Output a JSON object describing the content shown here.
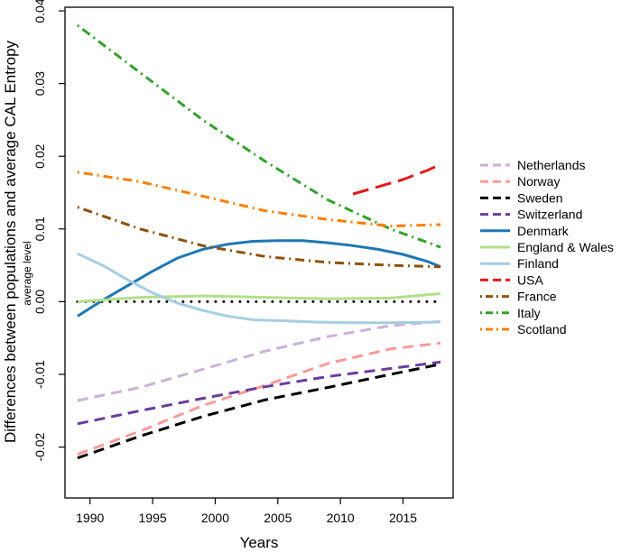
{
  "chart_data": {
    "type": "line",
    "xlabel": "Years",
    "ylabel": "Differences between populations and average CAL Entropy",
    "xlim": [
      1988,
      2019
    ],
    "ylim": [
      -0.027,
      0.0405
    ],
    "xticks": [
      1990,
      1995,
      2000,
      2005,
      2010,
      2015
    ],
    "yticks": [
      -0.02,
      -0.01,
      0.0,
      0.01,
      0.02,
      0.03,
      0.04
    ],
    "ytick_labels": [
      "-0.02",
      "-0.01",
      "0.00",
      "0.01",
      "0.02",
      "0.03",
      "0.04"
    ],
    "reference_line": {
      "y": 0,
      "label": "average level",
      "color": "#000000"
    },
    "series": [
      {
        "name": "Netherlands",
        "color": "#cab2d6",
        "dash": "dashed",
        "x": [
          1989,
          1994,
          1999,
          2004,
          2009,
          2014,
          2018
        ],
        "y": [
          -0.0136,
          -0.0118,
          -0.0093,
          -0.0068,
          -0.0048,
          -0.0033,
          -0.0027
        ]
      },
      {
        "name": "Norway",
        "color": "#fb9a99",
        "dash": "dashed",
        "x": [
          1989,
          1994,
          1999,
          2004,
          2009,
          2014,
          2018
        ],
        "y": [
          -0.021,
          -0.0178,
          -0.0143,
          -0.0115,
          -0.0085,
          -0.0065,
          -0.0057
        ]
      },
      {
        "name": "Sweden",
        "color": "#000000",
        "dash": "dashed",
        "x": [
          1989,
          1994,
          1999,
          2004,
          2009,
          2014,
          2018
        ],
        "y": [
          -0.0215,
          -0.0185,
          -0.0158,
          -0.0135,
          -0.0118,
          -0.01,
          -0.0086
        ]
      },
      {
        "name": "Switzerland",
        "color": "#6a3d9a",
        "dash": "dashed",
        "x": [
          1989,
          1994,
          1999,
          2004,
          2009,
          2014,
          2018
        ],
        "y": [
          -0.0168,
          -0.015,
          -0.0133,
          -0.0117,
          -0.0103,
          -0.0092,
          -0.0083
        ]
      },
      {
        "name": "Denmark",
        "color": "#1f78b4",
        "dash": "solid",
        "x": [
          1989,
          1991,
          1993,
          1995,
          1997,
          1999,
          2001,
          2003,
          2005,
          2007,
          2009,
          2011,
          2013,
          2015,
          2017,
          2018
        ],
        "y": [
          -0.002,
          0.0002,
          0.0022,
          0.0042,
          0.006,
          0.0072,
          0.0079,
          0.0083,
          0.0084,
          0.0084,
          0.0081,
          0.0077,
          0.0072,
          0.0065,
          0.0055,
          0.0048
        ]
      },
      {
        "name": "England & Wales",
        "color": "#b2df8a",
        "dash": "solid",
        "x": [
          1989,
          1994,
          1999,
          2004,
          2009,
          2014,
          2018
        ],
        "y": [
          0.0,
          0.0006,
          0.0008,
          0.0006,
          0.0004,
          0.0005,
          0.0011
        ]
      },
      {
        "name": "Finland",
        "color": "#a6cee3",
        "dash": "solid",
        "x": [
          1989,
          1991,
          1993,
          1995,
          1997,
          1999,
          2001,
          2003,
          2005,
          2008,
          2011,
          2014,
          2018
        ],
        "y": [
          0.0066,
          0.005,
          0.003,
          0.0012,
          -0.0002,
          -0.0012,
          -0.002,
          -0.0025,
          -0.0026,
          -0.0028,
          -0.0029,
          -0.0029,
          -0.0028
        ]
      },
      {
        "name": "USA",
        "color": "#e31a1c",
        "dash": "longdash",
        "x": [
          2011,
          2013,
          2015,
          2017,
          2018
        ],
        "y": [
          0.0148,
          0.0158,
          0.0168,
          0.0181,
          0.0189
        ]
      },
      {
        "name": "France",
        "color": "#8c510a",
        "dash": "dotdash",
        "x": [
          1989,
          1994,
          1999,
          2004,
          2009,
          2014,
          2018
        ],
        "y": [
          0.013,
          0.01,
          0.0077,
          0.0062,
          0.0054,
          0.005,
          0.0048
        ]
      },
      {
        "name": "Italy",
        "color": "#33a02c",
        "dash": "dotdash",
        "x": [
          1989,
          1994,
          1999,
          2004,
          2009,
          2014,
          2018
        ],
        "y": [
          0.038,
          0.0315,
          0.025,
          0.0193,
          0.014,
          0.01,
          0.0075
        ]
      },
      {
        "name": "Scotland",
        "color": "#ff7f00",
        "dash": "dotdash",
        "x": [
          1989,
          1994,
          1999,
          2004,
          2009,
          2014,
          2018
        ],
        "y": [
          0.0178,
          0.0165,
          0.0145,
          0.0125,
          0.0113,
          0.0104,
          0.0106
        ]
      }
    ]
  }
}
